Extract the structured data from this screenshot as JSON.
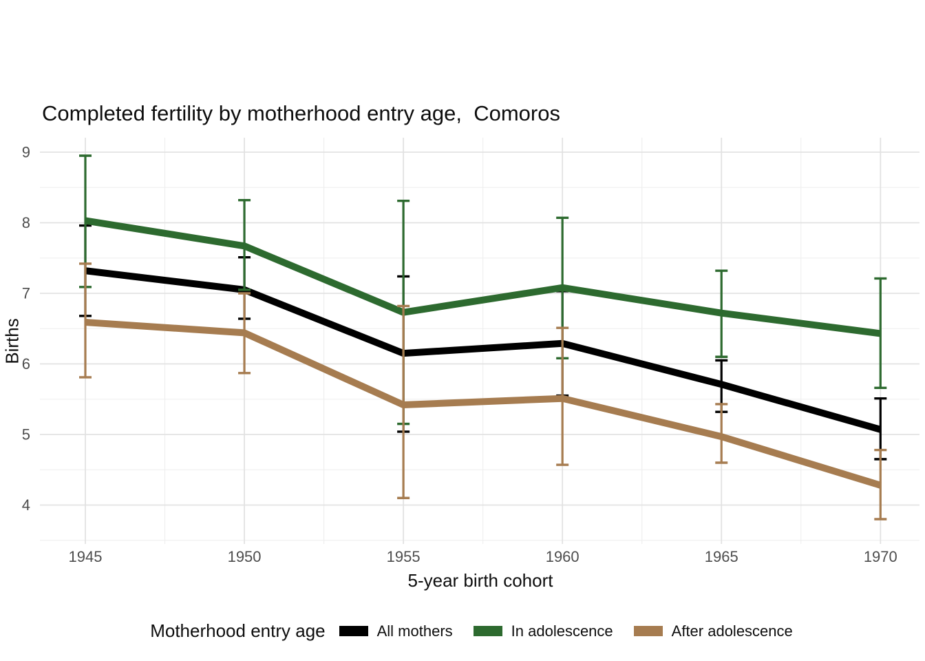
{
  "title": "Completed fertility by motherhood entry age,  Comoros",
  "axes": {
    "x_title": "5-year birth cohort",
    "y_title": "Births",
    "x_ticks": [
      "1945",
      "1950",
      "1955",
      "1960",
      "1965",
      "1970"
    ],
    "y_ticks": [
      "4",
      "5",
      "6",
      "7",
      "8",
      "9"
    ]
  },
  "legend": {
    "title": "Motherhood entry age",
    "items": [
      {
        "label": "All mothers",
        "color": "#000000"
      },
      {
        "label": "In adolescence",
        "color": "#2d6a2f"
      },
      {
        "label": "After adolescence",
        "color": "#a67c50"
      }
    ]
  },
  "colors": {
    "background": "#ffffff",
    "grid_major": "#e2e2e2",
    "grid_minor": "#eeeeee",
    "axis_text": "#4d4d4d",
    "series_black": "#000000",
    "series_green": "#2d6a2f",
    "series_brown": "#a67c50"
  },
  "chart_data": {
    "type": "line",
    "title": "Completed fertility by motherhood entry age,  Comoros",
    "xlabel": "5-year birth cohort",
    "ylabel": "Births",
    "x": [
      1945,
      1950,
      1955,
      1960,
      1965,
      1970
    ],
    "xlim": [
      1943.5,
      1971.2
    ],
    "ylim": [
      3.45,
      9.2
    ],
    "y_major_gridlines": [
      4,
      5,
      6,
      7,
      8,
      9
    ],
    "y_minor_gridlines": [
      3.5,
      4.5,
      5.5,
      6.5,
      7.5,
      8.5
    ],
    "x_minor_gridlines": [
      1947.5,
      1952.5,
      1957.5,
      1962.5,
      1967.5
    ],
    "grid": true,
    "legend_position": "bottom",
    "error_bars": true,
    "series": [
      {
        "name": "All mothers",
        "color": "#000000",
        "values": [
          7.32,
          7.05,
          6.15,
          6.29,
          5.71,
          5.07
        ],
        "ci_low": [
          6.68,
          6.64,
          5.04,
          5.55,
          5.32,
          4.65
        ],
        "ci_high": [
          7.96,
          7.51,
          7.24,
          7.03,
          6.05,
          5.51
        ]
      },
      {
        "name": "In adolescence",
        "color": "#2d6a2f",
        "values": [
          8.03,
          7.67,
          6.73,
          7.08,
          6.72,
          6.43
        ],
        "ci_low": [
          7.09,
          7.05,
          5.15,
          6.08,
          6.1,
          5.66
        ],
        "ci_high": [
          8.95,
          8.32,
          8.31,
          8.07,
          7.32,
          7.21
        ]
      },
      {
        "name": "After adolescence",
        "color": "#a67c50",
        "values": [
          6.59,
          6.44,
          5.42,
          5.51,
          4.97,
          4.28
        ],
        "ci_low": [
          5.81,
          5.87,
          4.1,
          4.57,
          4.6,
          3.8
        ],
        "ci_high": [
          7.42,
          7.0,
          6.82,
          6.51,
          5.43,
          4.78
        ]
      }
    ]
  }
}
